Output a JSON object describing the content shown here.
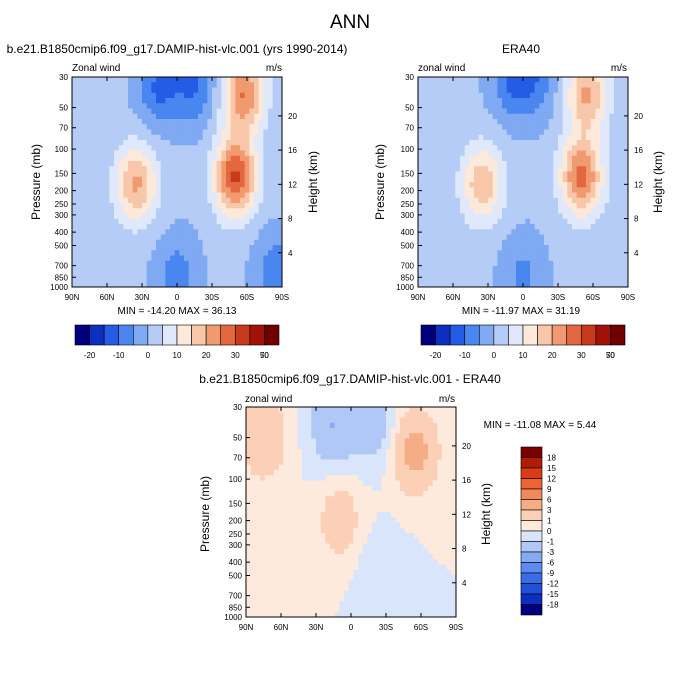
{
  "figure": {
    "title": "ANN"
  },
  "colors": {
    "abs_scale": [
      "#00007f",
      "#0c2fbf",
      "#245ce6",
      "#4a86f0",
      "#7fa9f2",
      "#b5cdf6",
      "#dfe9fb",
      "#fce9da",
      "#f8c6a9",
      "#f1996f",
      "#e4683f",
      "#c73a1b",
      "#a01208",
      "#700000"
    ],
    "diff_scale": [
      "#00007f",
      "#0c2fbf",
      "#1f4fdb",
      "#3a6ce8",
      "#5d8aee",
      "#86aaf2",
      "#b0c8f5",
      "#d8e5fa",
      "#fdeadc",
      "#fbd0b6",
      "#f6ac85",
      "#f2895a",
      "#ec6334",
      "#d93c16",
      "#b21b06",
      "#7a0000"
    ]
  },
  "chart_data": [
    {
      "type": "heatmap",
      "title": "b.e21.B1850cmip6.f09_g17.DAMIP-hist-vlc.001 (yrs 1990-2014)",
      "left_label": "Zonal wind",
      "units": "m/s",
      "ylabel": "Pressure (mb)",
      "ylabel_right": "Height (km)",
      "x_ticks": [
        "90N",
        "60N",
        "30N",
        "0",
        "30S",
        "60S",
        "90S"
      ],
      "y_ticks": [
        "30",
        "50",
        "70",
        "100",
        "150",
        "200",
        "250",
        "300",
        "400",
        "500",
        "700",
        "850",
        "1000"
      ],
      "y2_ticks": [
        "20",
        "16",
        "12",
        "8",
        "4"
      ],
      "stats": "MIN = -14.20   MAX =  36.13",
      "colorbar_labels": [
        "-20",
        "-10",
        "0",
        "10",
        "20",
        "30",
        "50",
        "70"
      ],
      "features": [
        {
          "lat": -50,
          "logp": 2.2,
          "value": 30
        },
        {
          "lat": -57,
          "logp": 1.6,
          "value": 24
        },
        {
          "lat": 35,
          "logp": 2.25,
          "value": 20
        },
        {
          "lat": 15,
          "logp": 1.55,
          "value": -12
        },
        {
          "lat": -15,
          "logp": 1.55,
          "value": -11
        },
        {
          "lat": 0,
          "logp": 2.9,
          "value": -8
        },
        {
          "lat": -85,
          "logp": 2.9,
          "value": -10
        }
      ]
    },
    {
      "type": "heatmap",
      "title": "ERA40",
      "left_label": "zonal wind",
      "units": "m/s",
      "ylabel": "Pressure (mb)",
      "ylabel_right": "Height (km)",
      "x_ticks": [
        "90N",
        "60N",
        "30N",
        "0",
        "30S",
        "60S",
        "90S"
      ],
      "y_ticks": [
        "30",
        "50",
        "70",
        "100",
        "150",
        "200",
        "250",
        "300",
        "400",
        "500",
        "700",
        "850",
        "1000"
      ],
      "y2_ticks": [
        "20",
        "16",
        "12",
        "8",
        "4"
      ],
      "stats": "MIN = -11.97   MAX =  31.19",
      "colorbar_labels": [
        "-20",
        "-10",
        "0",
        "10",
        "20",
        "30",
        "50",
        "70"
      ],
      "features": [
        {
          "lat": -50,
          "logp": 2.2,
          "value": 26
        },
        {
          "lat": -55,
          "logp": 1.6,
          "value": 20
        },
        {
          "lat": 35,
          "logp": 2.25,
          "value": 18
        },
        {
          "lat": 10,
          "logp": 1.5,
          "value": -10
        },
        {
          "lat": -10,
          "logp": 1.5,
          "value": -9
        },
        {
          "lat": 0,
          "logp": 2.9,
          "value": -7
        }
      ]
    },
    {
      "type": "heatmap",
      "title": "b.e21.B1850cmip6.f09_g17.DAMIP-hist-vlc.001 - ERA40",
      "left_label": "zonal wind",
      "units": "m/s",
      "ylabel": "Pressure (mb)",
      "ylabel_right": "Height (km)",
      "x_ticks": [
        "90N",
        "60N",
        "30N",
        "0",
        "30S",
        "60S",
        "90S"
      ],
      "y_ticks": [
        "30",
        "50",
        "70",
        "100",
        "150",
        "200",
        "250",
        "300",
        "400",
        "500",
        "700",
        "850",
        "1000"
      ],
      "y2_ticks": [
        "20",
        "16",
        "12",
        "8",
        "4"
      ],
      "stats": "MIN = -11.08   MAX =   5.44",
      "colorbar_labels": [
        "18",
        "15",
        "12",
        "9",
        "6",
        "3",
        "1",
        "0",
        "-1",
        "-3",
        "-6",
        "-9",
        "-12",
        "-15",
        "-18"
      ],
      "features": [
        {
          "lat": -55,
          "logp": 1.8,
          "value": 4
        },
        {
          "lat": 75,
          "logp": 1.7,
          "value": 3
        },
        {
          "lat": 10,
          "logp": 2.3,
          "value": 2
        },
        {
          "lat": 15,
          "logp": 1.6,
          "value": -3
        },
        {
          "lat": -20,
          "logp": 1.6,
          "value": -2
        },
        {
          "lat": -25,
          "logp": 2.7,
          "value": -1
        }
      ]
    }
  ]
}
